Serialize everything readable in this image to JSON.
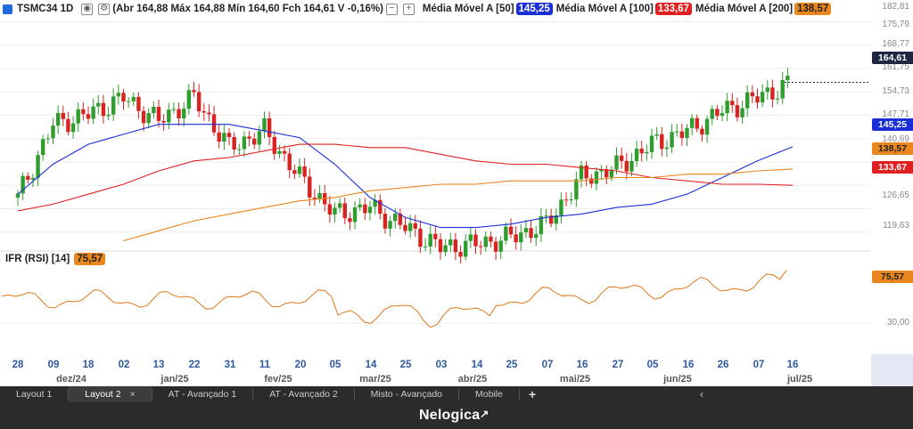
{
  "header": {
    "symbol": "TSMC34 1D",
    "ohlc": "(Abr 164,88 Máx 164,88 Mín 164,60 Fch 164,61 V -0,16%)",
    "ma": [
      {
        "label": "Média Móvel A [50]",
        "value": "145,25",
        "color": "#1a2fd6"
      },
      {
        "label": "Média Móvel A [100]",
        "value": "133,67",
        "color": "#e02020"
      },
      {
        "label": "Média Móvel A [200]",
        "value": "138,57",
        "color": "#e9861d"
      }
    ]
  },
  "rsi": {
    "label": "IFR (RSI) [14]",
    "value": "75,57"
  },
  "price_axis": {
    "ticks": [
      "182,81",
      "175,79",
      "168,77",
      "161,75",
      "154,73",
      "147,71",
      "140,69",
      "133,67",
      "126,65",
      "119,63"
    ],
    "last_price": "164,61",
    "rsi_tick": "30,00"
  },
  "x_axis": {
    "days": [
      "28",
      "09",
      "18",
      "02",
      "13",
      "22",
      "31",
      "11",
      "20",
      "05",
      "14",
      "25",
      "03",
      "14",
      "25",
      "07",
      "16",
      "27",
      "05",
      "16",
      "26",
      "07",
      "16"
    ],
    "months": [
      "dez/24",
      "jan/25",
      "fev/25",
      "mar/25",
      "abr/25",
      "mai/25",
      "jun/25",
      "jul/25"
    ]
  },
  "tabs": [
    {
      "label": "Layout 1",
      "active": false
    },
    {
      "label": "Layout 2",
      "active": true,
      "close": "×"
    },
    {
      "label": "AT - Avançado 1",
      "active": false
    },
    {
      "label": "AT - Avançado 2",
      "active": false
    },
    {
      "label": "Misto - Avançado",
      "active": false
    },
    {
      "label": "Mobile",
      "active": false
    }
  ],
  "add_tab": "+",
  "nav_arrows": "‹",
  "brand": "Nelogica",
  "chart_data": {
    "type": "candlestick",
    "x": [
      "2024-11-28",
      "2024-12-09",
      "2024-12-18",
      "2025-01-02",
      "2025-01-13",
      "2025-01-22",
      "2025-01-31",
      "2025-02-11",
      "2025-02-20",
      "2025-03-05",
      "2025-03-14",
      "2025-03-25",
      "2025-04-03",
      "2025-04-14",
      "2025-04-25",
      "2025-05-07",
      "2025-05-16",
      "2025-05-27",
      "2025-06-05",
      "2025-06-16",
      "2025-06-26",
      "2025-07-07",
      "2025-07-16"
    ],
    "close_approx": [
      130,
      152,
      155,
      160,
      153,
      160,
      145,
      150,
      136,
      125,
      127,
      121,
      115,
      116,
      118,
      122,
      136,
      139,
      146,
      150,
      156,
      160,
      164.61
    ],
    "series": [
      {
        "name": "Média Móvel A [50]",
        "values": [
          131,
          140,
          146,
          149,
          152,
          152,
          152,
          150,
          148,
          140,
          130,
          124,
          121,
          121,
          122,
          124,
          125,
          127,
          128,
          131,
          136,
          141,
          145.25
        ]
      },
      {
        "name": "Média Móvel A [100]",
        "values": [
          126,
          128,
          131,
          134,
          138,
          141,
          142,
          144,
          146,
          146,
          145,
          145,
          143,
          141,
          140,
          140,
          139,
          138,
          136,
          135,
          134,
          134,
          133.67
        ]
      },
      {
        "name": "Média Móvel A [200]",
        "values": [
          null,
          null,
          null,
          117,
          120,
          123,
          125,
          127,
          129,
          130,
          132,
          133,
          134,
          134,
          135,
          135,
          135,
          136,
          136,
          137,
          137,
          138,
          138.57
        ]
      }
    ],
    "ylim": [
      115,
      184
    ]
  }
}
